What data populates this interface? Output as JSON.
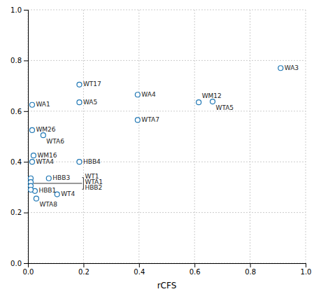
{
  "chart_data": {
    "type": "scatter",
    "xlabel": "rCFS",
    "labels": [
      "WA3",
      "WT17",
      "WA4",
      "WA1",
      "WA5",
      "WM12",
      "WTA5",
      "WTA7",
      "WM26",
      "WTA6",
      "WM16",
      "WTA4",
      "HBB4",
      "HBB3",
      "HBB1",
      "WT4",
      "WTA8"
    ],
    "x": [
      0.91,
      0.185,
      0.395,
      0.015,
      0.185,
      0.615,
      0.665,
      0.395,
      0.015,
      0.055,
      0.02,
      0.015,
      0.185,
      0.075,
      0.025,
      0.105,
      0.03
    ],
    "y": [
      0.77,
      0.705,
      0.665,
      0.625,
      0.635,
      0.635,
      0.638,
      0.565,
      0.525,
      0.505,
      0.425,
      0.4,
      0.4,
      0.335,
      0.285,
      0.272,
      0.255
    ],
    "clustered": {
      "x": [
        0.01,
        0.01,
        0.01,
        0.01
      ],
      "y": [
        0.335,
        0.32,
        0.305,
        0.29
      ]
    },
    "connector": {
      "x": [
        0.02,
        0.195
      ],
      "y": 0.315
    },
    "bracket": {
      "x_left": 0.195,
      "x_right": 0.2,
      "y_top": 0.338,
      "y_bottom": 0.292
    },
    "annotations": [
      {
        "text": "WT1",
        "x": 0.205,
        "y": 0.34
      },
      {
        "text": "WTA1",
        "x": 0.205,
        "y": 0.318
      },
      {
        "text": "HBB2",
        "x": 0.205,
        "y": 0.296
      }
    ],
    "xlim": [
      0,
      1.0
    ],
    "ylim": [
      0,
      1.0
    ],
    "xticks": [
      {
        "value": 0,
        "label": "0.0"
      },
      0.2,
      0.4,
      0.6,
      0.8,
      {
        "value": 1.0,
        "label": "1.0"
      }
    ],
    "yticks": [
      {
        "value": 0,
        "label": "0.0"
      },
      0.2,
      0.4,
      0.6,
      0.8,
      {
        "value": 1.0,
        "label": "1.0"
      }
    ],
    "grid": true
  }
}
